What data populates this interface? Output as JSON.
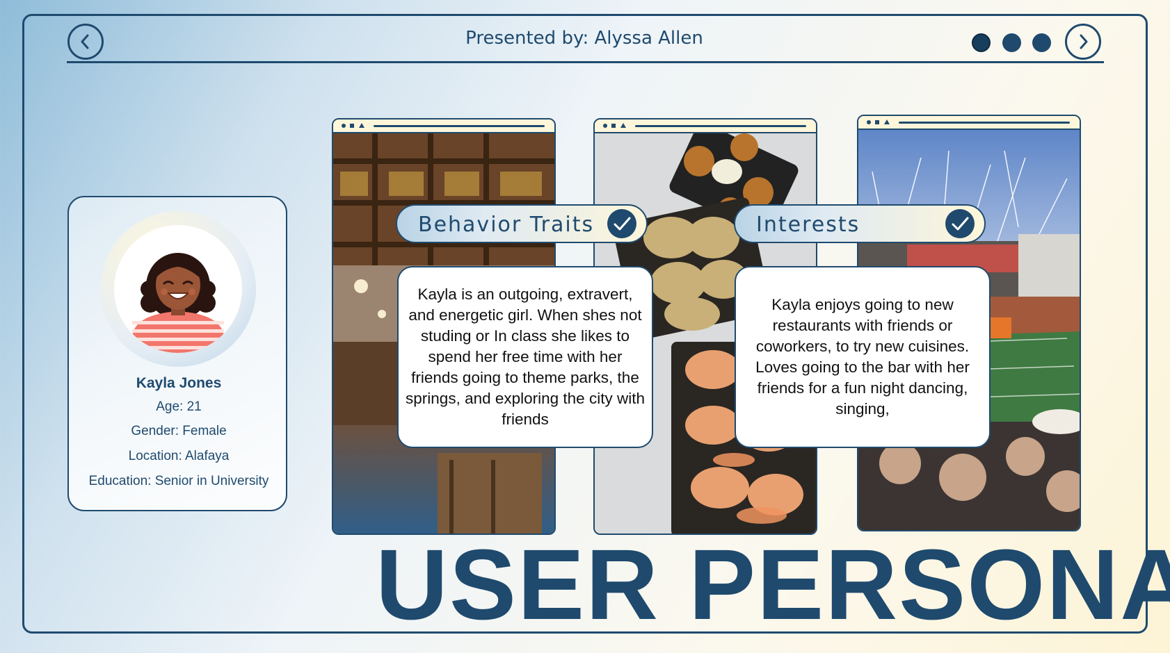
{
  "header": {
    "title": "Presented by: Alyssa Allen",
    "pagination_dots": 3
  },
  "profile": {
    "name": "Kayla Jones",
    "age": "Age: 21",
    "gender": "Gender: Female",
    "location": "Location: Alafaya",
    "education": "Education: Senior in University"
  },
  "sections": {
    "behavior": {
      "title": "Behavior Traits",
      "text": "Kayla is an outgoing, extravert, and energetic girl. When shes not studing or In class she likes to spend her free time with her friends going to theme parks, the springs, and exploring the city with friends"
    },
    "interests": {
      "title": "Interests",
      "text": "Kayla enjoys going to new restaurants with friends or coworkers, to try new cuisines. Loves going to the bar with her friends for a fun night dancing, singing,"
    }
  },
  "page_title": "USER PERSONA",
  "colors": {
    "primary": "#1f4a6e",
    "cream": "#fdf6da",
    "light_blue": "#b9d3e6"
  }
}
